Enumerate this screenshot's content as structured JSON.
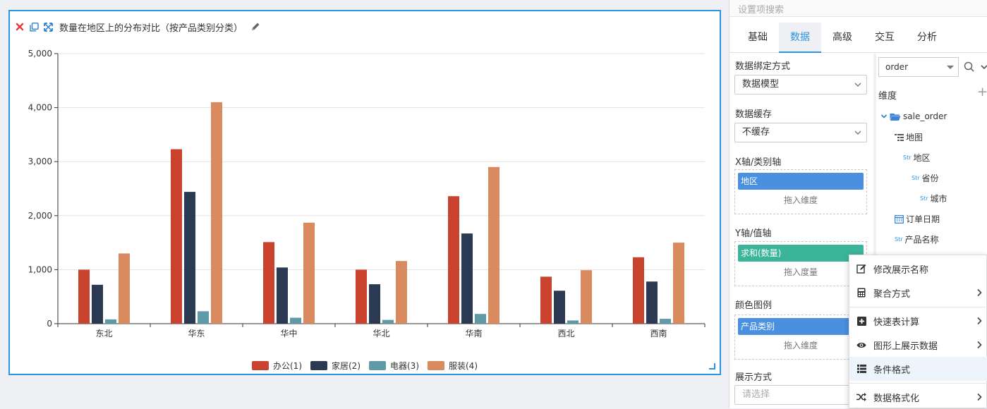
{
  "card": {
    "title": "数量在地区上的分布对比（按产品类别分类）"
  },
  "chart_data": {
    "type": "bar",
    "categories": [
      "东北",
      "华东",
      "华中",
      "华北",
      "华南",
      "西北",
      "西南"
    ],
    "series": [
      {
        "name": "办公(1)",
        "color": "#c9432e",
        "values": [
          1000,
          3230,
          1510,
          1000,
          2360,
          870,
          1230
        ]
      },
      {
        "name": "家居(2)",
        "color": "#2b3a52",
        "values": [
          720,
          2440,
          1040,
          730,
          1670,
          610,
          780
        ]
      },
      {
        "name": "电器(3)",
        "color": "#5f9aa8",
        "values": [
          80,
          230,
          110,
          70,
          180,
          60,
          90
        ]
      },
      {
        "name": "服装(4)",
        "color": "#d98a5e",
        "values": [
          1300,
          4100,
          1870,
          1160,
          2900,
          990,
          1500
        ]
      }
    ],
    "yticks": [
      "0",
      "1,000",
      "2,000",
      "3,000",
      "4,000",
      "5,000"
    ],
    "ylim": [
      0,
      5000
    ],
    "grid": true,
    "legend_position": "bottom"
  },
  "panel": {
    "search_placeholder": "设置项搜索",
    "tabs": [
      {
        "label": "基础"
      },
      {
        "label": "数据"
      },
      {
        "label": "高级"
      },
      {
        "label": "交互"
      },
      {
        "label": "分析"
      }
    ],
    "binding_label": "数据绑定方式",
    "binding_value": "数据模型",
    "cache_label": "数据缓存",
    "cache_value": "不缓存",
    "xaxis_label": "X轴/类别轴",
    "xaxis_pill": "地区",
    "xaxis_hint": "拖入维度",
    "yaxis_label": "Y轴/值轴",
    "yaxis_pill": "求和(数量)",
    "yaxis_hint": "拖入度量",
    "color_label": "颜色图例",
    "color_pill": "产品类别",
    "color_hint": "拖入维度",
    "display_label": "展示方式",
    "display_placeholder": "请选择"
  },
  "dims": {
    "datasource": "order",
    "header": "维度",
    "add_symbol": "+",
    "folder": "sale_order",
    "str_tag": "Str",
    "items": [
      "地图",
      "地区",
      "省份",
      "城市",
      "订单日期",
      "产品名称"
    ]
  },
  "menu": {
    "items": [
      {
        "label": "修改展示名称",
        "icon": "edit-icon"
      },
      {
        "label": "聚合方式",
        "icon": "calculator-icon"
      },
      {
        "label": "快速表计算",
        "icon": "plus-square-icon"
      },
      {
        "label": "图形上展示数据",
        "icon": "eye-icon"
      },
      {
        "label": "条件格式",
        "icon": "list-icon"
      },
      {
        "label": "数据格式化",
        "icon": "shuffle-icon"
      }
    ]
  }
}
